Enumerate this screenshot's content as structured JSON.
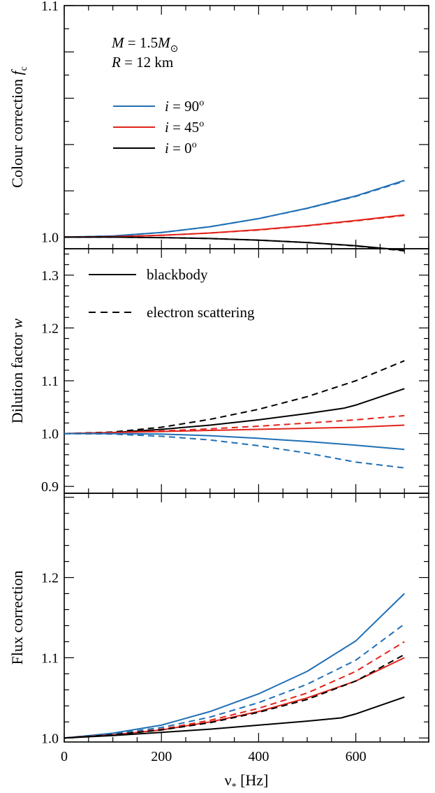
{
  "chart_data": [
    {
      "type": "line",
      "ylabel": "Colour correction",
      "ylabel_symbol": "f",
      "ylabel_subscript": "c",
      "xlim": [
        0,
        750
      ],
      "ylim": [
        0.995,
        1.1
      ],
      "yticks": [
        1.0,
        1.1
      ],
      "ytick_labels": [
        "1.0",
        "1.1"
      ],
      "annotations": {
        "mass": {
          "sym": "M",
          "text": " = 1.5",
          "sym2": "M",
          "sub": "⊙"
        },
        "radius": {
          "sym": "R",
          "text": " = 12 km"
        }
      },
      "legend_title": "",
      "series": [
        {
          "name": "i = 90°",
          "label_i": "i",
          "label_eq": " = 90",
          "label_sup": "o",
          "color": "#1f6fb5",
          "dash": "solid",
          "x": [
            0,
            100,
            200,
            300,
            400,
            500,
            600,
            700
          ],
          "y": [
            1.0,
            1.0005,
            1.002,
            1.0045,
            1.008,
            1.0125,
            1.0178,
            1.0245
          ]
        },
        {
          "name": "i = 90° (electron scattering)",
          "color": "#1f6fb5",
          "dash": "dashed",
          "x": [
            0,
            100,
            200,
            300,
            400,
            500,
            600,
            700
          ],
          "y": [
            1.0,
            1.0005,
            1.002,
            1.0045,
            1.008,
            1.0124,
            1.0176,
            1.0242
          ]
        },
        {
          "name": "i = 45°",
          "label_i": "i",
          "label_eq": " = 45",
          "label_sup": "o",
          "color": "#e2231a",
          "dash": "solid",
          "x": [
            0,
            100,
            200,
            300,
            400,
            500,
            600,
            700
          ],
          "y": [
            1.0,
            1.0002,
            1.0008,
            1.0018,
            1.0032,
            1.005,
            1.0072,
            1.0096
          ]
        },
        {
          "name": "i = 45° (electron scattering)",
          "color": "#e2231a",
          "dash": "dashed",
          "x": [
            0,
            100,
            200,
            300,
            400,
            500,
            600,
            700
          ],
          "y": [
            1.0,
            1.0002,
            1.0008,
            1.0018,
            1.0031,
            1.0049,
            1.007,
            1.0094
          ]
        },
        {
          "name": "i = 0°",
          "label_i": "i",
          "label_eq": " = 0",
          "label_sup": "o",
          "color": "#000000",
          "dash": "solid",
          "x": [
            0,
            100,
            200,
            300,
            400,
            500,
            600,
            700
          ],
          "y": [
            1.0,
            1.0,
            0.9998,
            0.9994,
            0.9987,
            0.9977,
            0.9963,
            0.9943
          ]
        },
        {
          "name": "i = 0° (electron scattering)",
          "color": "#000000",
          "dash": "dashed",
          "x": [
            0,
            100,
            200,
            300,
            400,
            500,
            600,
            700
          ],
          "y": [
            1.0,
            1.0,
            0.9998,
            0.9994,
            0.9987,
            0.9977,
            0.9962,
            0.9941
          ]
        }
      ]
    },
    {
      "type": "line",
      "ylabel": "Dilution factor",
      "ylabel_symbol": "w",
      "xlim": [
        0,
        750
      ],
      "ylim": [
        0.887,
        1.35
      ],
      "yticks": [
        0.9,
        1.0,
        1.1,
        1.2,
        1.3
      ],
      "ytick_labels": [
        "0.9",
        "1.0",
        "1.1",
        "1.2",
        "1.3"
      ],
      "legend": {
        "solid": "blackbody",
        "dashed": "electron scattering"
      },
      "series": [
        {
          "name": "i = 0° blackbody",
          "color": "#000000",
          "dash": "solid",
          "x": [
            0,
            100,
            200,
            300,
            400,
            500,
            575,
            600,
            700
          ],
          "y": [
            1.0,
            1.002,
            1.008,
            1.016,
            1.026,
            1.038,
            1.048,
            1.054,
            1.085
          ]
        },
        {
          "name": "i = 0° electron scattering",
          "color": "#000000",
          "dash": "dashed",
          "x": [
            0,
            100,
            200,
            300,
            400,
            500,
            600,
            700
          ],
          "y": [
            1.0,
            1.003,
            1.012,
            1.027,
            1.046,
            1.07,
            1.1,
            1.138
          ]
        },
        {
          "name": "i = 45° blackbody",
          "color": "#e2231a",
          "dash": "solid",
          "x": [
            0,
            100,
            200,
            300,
            400,
            500,
            600,
            700
          ],
          "y": [
            1.0,
            1.002,
            1.004,
            1.006,
            1.008,
            1.01,
            1.012,
            1.016
          ]
        },
        {
          "name": "i = 45° electron scattering",
          "color": "#e2231a",
          "dash": "dashed",
          "x": [
            0,
            100,
            200,
            300,
            400,
            500,
            600,
            700
          ],
          "y": [
            1.0,
            1.002,
            1.005,
            1.009,
            1.014,
            1.02,
            1.026,
            1.034
          ]
        },
        {
          "name": "i = 90° blackbody",
          "color": "#1f6fb5",
          "dash": "solid",
          "x": [
            0,
            100,
            200,
            300,
            400,
            500,
            600,
            700
          ],
          "y": [
            1.0,
            1.0,
            0.999,
            0.996,
            0.991,
            0.985,
            0.978,
            0.97
          ]
        },
        {
          "name": "i = 90° electron scattering",
          "color": "#1f6fb5",
          "dash": "dashed",
          "x": [
            0,
            100,
            200,
            300,
            400,
            500,
            600,
            700
          ],
          "y": [
            1.0,
            0.999,
            0.995,
            0.988,
            0.977,
            0.963,
            0.946,
            0.935
          ]
        }
      ]
    },
    {
      "type": "line",
      "ylabel": "Flux correction",
      "xlabel": "ν",
      "xlabel_sub": "*",
      "xlabel_unit": " [Hz]",
      "xlim": [
        0,
        750
      ],
      "ylim": [
        0.995,
        1.305
      ],
      "xticks": [
        0,
        200,
        400,
        600
      ],
      "xtick_labels": [
        "0",
        "200",
        "400",
        "600"
      ],
      "yticks": [
        1.0,
        1.1,
        1.2
      ],
      "ytick_labels": [
        "1.0",
        "1.1",
        "1.2"
      ],
      "series": [
        {
          "name": "i = 90° blackbody",
          "color": "#1f6fb5",
          "dash": "solid",
          "x": [
            0,
            100,
            200,
            300,
            400,
            500,
            600,
            700
          ],
          "y": [
            1.0,
            1.006,
            1.016,
            1.033,
            1.055,
            1.083,
            1.121,
            1.18
          ]
        },
        {
          "name": "i = 90° electron scattering",
          "color": "#1f6fb5",
          "dash": "dashed",
          "x": [
            0,
            100,
            200,
            300,
            400,
            500,
            600,
            700
          ],
          "y": [
            1.0,
            1.005,
            1.013,
            1.026,
            1.044,
            1.067,
            1.097,
            1.142
          ]
        },
        {
          "name": "i = 45° electron scattering",
          "color": "#e2231a",
          "dash": "dashed",
          "x": [
            0,
            100,
            200,
            300,
            400,
            500,
            600,
            700
          ],
          "y": [
            1.0,
            1.004,
            1.011,
            1.022,
            1.037,
            1.056,
            1.083,
            1.12
          ]
        },
        {
          "name": "i = 45° blackbody",
          "color": "#e2231a",
          "dash": "solid",
          "x": [
            0,
            100,
            200,
            300,
            400,
            500,
            600,
            700
          ],
          "y": [
            1.0,
            1.004,
            1.01,
            1.02,
            1.033,
            1.05,
            1.071,
            1.1
          ]
        },
        {
          "name": "i = 0° electron scattering",
          "color": "#000000",
          "dash": "dashed",
          "x": [
            0,
            100,
            200,
            300,
            400,
            500,
            600,
            700
          ],
          "y": [
            1.0,
            1.004,
            1.01,
            1.019,
            1.032,
            1.048,
            1.071,
            1.104
          ]
        },
        {
          "name": "i = 0° blackbody",
          "color": "#000000",
          "dash": "solid",
          "x": [
            0,
            100,
            200,
            300,
            400,
            500,
            570,
            600,
            700
          ],
          "y": [
            1.0,
            1.003,
            1.007,
            1.011,
            1.016,
            1.021,
            1.025,
            1.03,
            1.051
          ]
        }
      ]
    }
  ]
}
